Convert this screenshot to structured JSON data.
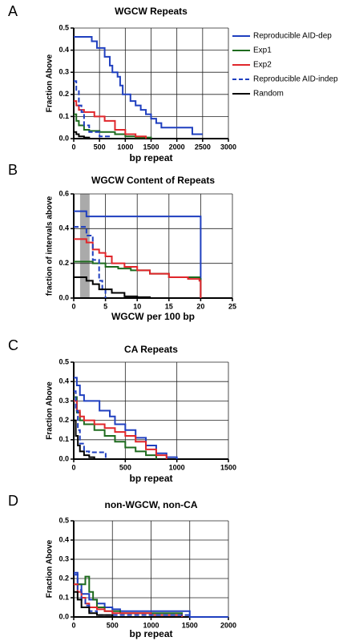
{
  "chart_data": [
    {
      "type": "line",
      "panel_label": "A",
      "title": "WGCW Repeats",
      "x_label": "bp repeat",
      "y_label": "Fraction Above",
      "step": "post",
      "grid": true,
      "legend": "right",
      "xlim": [
        0,
        3000
      ],
      "xticks": [
        0,
        500,
        1000,
        1500,
        2000,
        2500,
        3000
      ],
      "ylim": [
        0,
        0.5
      ],
      "yticks": [
        {
          "value": 0,
          "label": "0.0"
        },
        0.1,
        0.2,
        0.3,
        0.4,
        0.5
      ],
      "series": [
        {
          "name": "Reproducible AID-dep",
          "color": "#1f3fbf",
          "x": [
            0,
            300,
            350,
            450,
            550,
            600,
            700,
            750,
            850,
            900,
            950,
            1050,
            1100,
            1200,
            1300,
            1400,
            1500,
            1600,
            1700,
            2200,
            2300,
            2500
          ],
          "values": [
            0.46,
            0.46,
            0.44,
            0.41,
            0.41,
            0.37,
            0.33,
            0.3,
            0.28,
            0.24,
            0.2,
            0.2,
            0.17,
            0.15,
            0.13,
            0.11,
            0.09,
            0.07,
            0.05,
            0.05,
            0.02,
            0.02
          ]
        },
        {
          "name": "Exp1",
          "color": "#1e6b1e",
          "x": [
            0,
            50,
            100,
            200,
            300,
            500,
            800,
            1000,
            1200,
            1500
          ],
          "values": [
            0.11,
            0.08,
            0.06,
            0.04,
            0.035,
            0.03,
            0.02,
            0.01,
            0.005,
            0
          ]
        },
        {
          "name": "Exp2",
          "color": "#e0262b",
          "x": [
            0,
            50,
            100,
            200,
            400,
            600,
            800,
            1000,
            1200,
            1400
          ],
          "values": [
            0.17,
            0.15,
            0.13,
            0.12,
            0.1,
            0.08,
            0.04,
            0.02,
            0.01,
            0
          ]
        },
        {
          "name": "Reproducible AID-indep",
          "color": "#1f3fbf",
          "dashed": true,
          "x": [
            0,
            50,
            100,
            150,
            200,
            300,
            500,
            700
          ],
          "values": [
            0.26,
            0.22,
            0.15,
            0.12,
            0.06,
            0.03,
            0.01,
            0
          ]
        },
        {
          "name": "Random",
          "color": "#000000",
          "x": [
            0,
            50,
            100,
            200,
            300
          ],
          "values": [
            0.03,
            0.02,
            0.01,
            0.005,
            0
          ]
        }
      ]
    },
    {
      "type": "line",
      "panel_label": "B",
      "title": "WGCW Content of Repeats",
      "x_label": "WGCW per 100 bp",
      "y_label": "fraction of intervals above",
      "step": "post",
      "grid": true,
      "highlight_xrange": [
        1,
        2.5
      ],
      "xlim": [
        0,
        25
      ],
      "xticks": [
        0,
        5,
        10,
        15,
        20,
        25
      ],
      "ylim": [
        0,
        0.6
      ],
      "yticks": [
        {
          "value": 0,
          "label": "0.0"
        },
        0.2,
        0.4,
        0.6
      ],
      "series": [
        {
          "color": "#1f3fbf",
          "x": [
            0,
            1,
            2,
            19.8,
            20
          ],
          "values": [
            0.5,
            0.5,
            0.47,
            0.47,
            0
          ]
        },
        {
          "color": "#1e6b1e",
          "x": [
            0,
            2,
            3,
            5,
            7,
            9,
            12,
            15,
            19.8,
            20
          ],
          "values": [
            0.21,
            0.21,
            0.2,
            0.18,
            0.17,
            0.16,
            0.14,
            0.12,
            0.11,
            0
          ]
        },
        {
          "color": "#e0262b",
          "x": [
            0,
            2,
            3,
            4,
            5,
            6,
            8,
            10,
            12,
            15,
            18,
            19.8,
            20
          ],
          "values": [
            0.34,
            0.32,
            0.28,
            0.26,
            0.24,
            0.2,
            0.18,
            0.16,
            0.14,
            0.12,
            0.11,
            0.1,
            0
          ]
        },
        {
          "color": "#1f3fbf",
          "dashed": true,
          "x": [
            0,
            1,
            2,
            3,
            4,
            4.5,
            5
          ],
          "values": [
            0.41,
            0.41,
            0.36,
            0.22,
            0.1,
            0.05,
            0
          ]
        },
        {
          "color": "#000000",
          "x": [
            0,
            1,
            2,
            3,
            4,
            6,
            8,
            10,
            12
          ],
          "values": [
            0.12,
            0.12,
            0.1,
            0.08,
            0.05,
            0.03,
            0.01,
            0.005,
            0
          ]
        }
      ]
    },
    {
      "type": "line",
      "panel_label": "C",
      "title": "CA Repeats",
      "x_label": "bp repeat",
      "y_label": "Fraction Above",
      "step": "post",
      "grid": true,
      "xlim": [
        0,
        1500
      ],
      "xticks": [
        0,
        500,
        1000,
        1500
      ],
      "ylim": [
        0,
        0.5
      ],
      "yticks": [
        {
          "value": 0,
          "label": "0.0"
        },
        0.1,
        0.2,
        0.3,
        0.4,
        0.5
      ],
      "series": [
        {
          "color": "#1f3fbf",
          "x": [
            0,
            30,
            60,
            100,
            150,
            250,
            350,
            400,
            500,
            600,
            700,
            800,
            900,
            1000
          ],
          "values": [
            0.42,
            0.38,
            0.33,
            0.3,
            0.3,
            0.25,
            0.22,
            0.18,
            0.15,
            0.11,
            0.07,
            0.03,
            0.01,
            0
          ]
        },
        {
          "color": "#1e6b1e",
          "x": [
            0,
            30,
            60,
            100,
            200,
            300,
            400,
            500,
            600,
            700,
            800
          ],
          "values": [
            0.32,
            0.24,
            0.2,
            0.18,
            0.15,
            0.12,
            0.09,
            0.06,
            0.04,
            0.02,
            0
          ]
        },
        {
          "color": "#e0262b",
          "x": [
            0,
            30,
            60,
            100,
            200,
            300,
            400,
            500,
            600,
            700,
            800,
            900
          ],
          "values": [
            0.3,
            0.25,
            0.22,
            0.2,
            0.18,
            0.16,
            0.14,
            0.12,
            0.09,
            0.05,
            0.02,
            0
          ]
        },
        {
          "color": "#1f3fbf",
          "dashed": true,
          "x": [
            0,
            20,
            40,
            60,
            100,
            150,
            300,
            310
          ],
          "values": [
            0.35,
            0.25,
            0.15,
            0.08,
            0.04,
            0.035,
            0.035,
            0
          ]
        },
        {
          "color": "#000000",
          "x": [
            0,
            20,
            40,
            60,
            100,
            150,
            200
          ],
          "values": [
            0.2,
            0.12,
            0.07,
            0.04,
            0.02,
            0.01,
            0
          ]
        }
      ]
    },
    {
      "type": "line",
      "panel_label": "D",
      "title": "non-WGCW, non-CA",
      "x_label": "bp repeat",
      "y_label": "Fraction Above",
      "step": "post",
      "grid": true,
      "xlim": [
        0,
        2000
      ],
      "xticks": [
        0,
        500,
        1000,
        1500,
        2000
      ],
      "ylim": [
        0,
        0.5
      ],
      "yticks": [
        {
          "value": 0,
          "label": "0.0"
        },
        0.1,
        0.2,
        0.3,
        0.4,
        0.5
      ],
      "series": [
        {
          "color": "#1f3fbf",
          "x": [
            0,
            50,
            100,
            200,
            300,
            400,
            500,
            600,
            800,
            1000,
            1300,
            1450,
            1500,
            2000
          ],
          "values": [
            0.23,
            0.17,
            0.12,
            0.09,
            0.07,
            0.05,
            0.04,
            0.03,
            0.03,
            0.03,
            0.03,
            0.03,
            0,
            0
          ]
        },
        {
          "color": "#1e6b1e",
          "x": [
            0,
            100,
            150,
            200,
            250,
            300,
            400,
            600,
            800,
            1000,
            1200,
            1400
          ],
          "values": [
            0.17,
            0.17,
            0.21,
            0.13,
            0.09,
            0.05,
            0.03,
            0.02,
            0.02,
            0.02,
            0.02,
            0
          ]
        },
        {
          "color": "#e0262b",
          "x": [
            0,
            50,
            100,
            150,
            200,
            300,
            400,
            500,
            700,
            1000,
            1200,
            1400
          ],
          "values": [
            0.17,
            0.13,
            0.1,
            0.07,
            0.05,
            0.04,
            0.03,
            0.02,
            0.02,
            0.01,
            0.01,
            0
          ]
        },
        {
          "color": "#1f3fbf",
          "dashed": true,
          "x": [
            0,
            50,
            100,
            150,
            200,
            300,
            1500,
            2000
          ],
          "values": [
            0.22,
            0.14,
            0.09,
            0.06,
            0.03,
            0.01,
            0,
            0
          ]
        },
        {
          "color": "#000000",
          "x": [
            0,
            50,
            100,
            200,
            300,
            500
          ],
          "values": [
            0.13,
            0.09,
            0.05,
            0.02,
            0.01,
            0
          ]
        }
      ]
    }
  ]
}
